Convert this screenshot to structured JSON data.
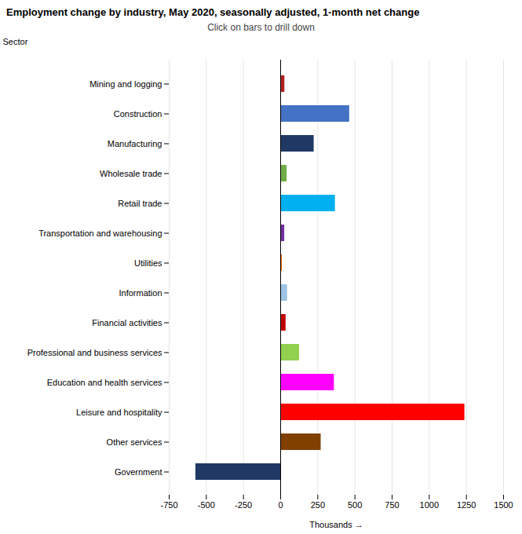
{
  "chart_data": {
    "type": "bar",
    "orientation": "horizontal",
    "title": "Employment change by industry, May 2020, seasonally adjusted, 1-month net change",
    "subtitle": "Click on bars to drill down",
    "xlabel": "Thousands",
    "ylabel": "Sector",
    "categories": [
      "Mining and logging",
      "Construction",
      "Manufacturing",
      "Wholesale trade",
      "Retail trade",
      "Transportation and warehousing",
      "Utilities",
      "Information",
      "Financial activities",
      "Professional and business services",
      "Education and health services",
      "Leisure and hospitality",
      "Other services",
      "Government"
    ],
    "values": [
      28,
      464,
      225,
      43,
      368,
      27,
      11,
      46,
      36,
      127,
      361,
      1239,
      272,
      -571
    ],
    "colors": [
      "#b22222",
      "#4472c4",
      "#1f3864",
      "#70ad47",
      "#00b0f0",
      "#7030a0",
      "#ff6600",
      "#9dc3e6",
      "#c00000",
      "#92d050",
      "#ff00ff",
      "#ff0000",
      "#804000",
      "#1f3864"
    ],
    "xlim": [
      -750,
      1500
    ],
    "xticks": [
      -750,
      -500,
      -250,
      0,
      250,
      500,
      750,
      1000,
      1250,
      1500
    ],
    "grid": true
  }
}
